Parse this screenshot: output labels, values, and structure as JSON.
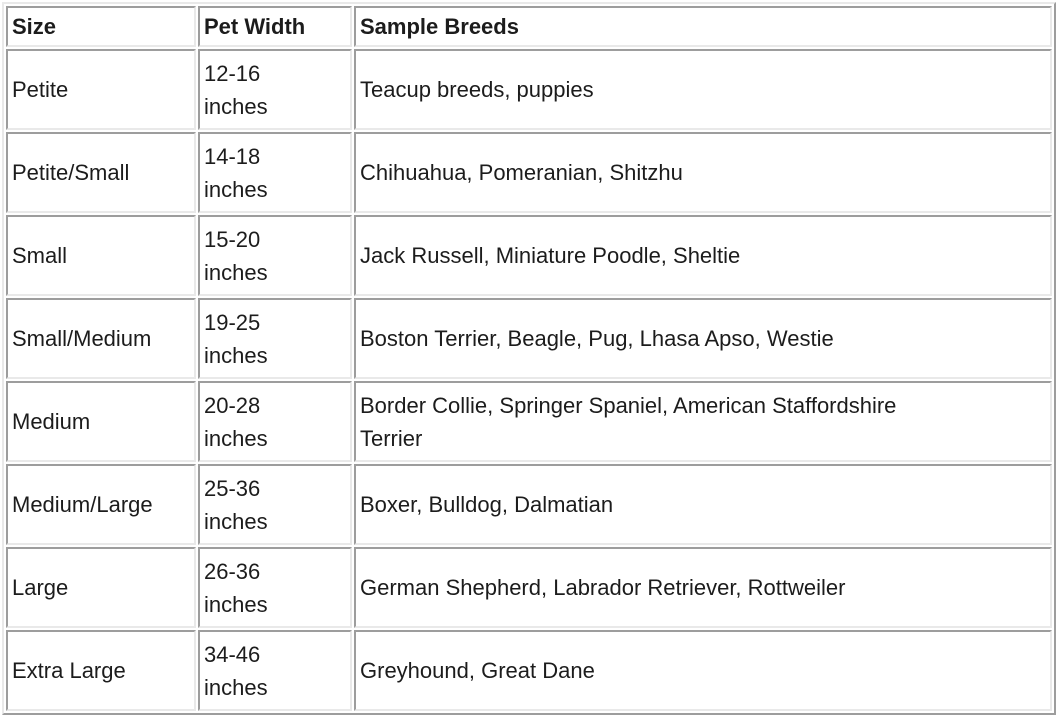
{
  "colors": {
    "border_dark": "#9d9d9d",
    "border_light": "#e9e9e9",
    "text": "#1c1c1c",
    "background": "#ffffff"
  },
  "table": {
    "columns": [
      {
        "label": "Size"
      },
      {
        "label": "Pet Width"
      },
      {
        "label": "Sample Breeds"
      }
    ],
    "rows": [
      {
        "size": "Petite",
        "width": "12-16\ninches",
        "breeds": "Teacup breeds, puppies"
      },
      {
        "size": "Petite/Small",
        "width": "14-18\ninches",
        "breeds": "Chihuahua, Pomeranian, Shitzhu"
      },
      {
        "size": "Small",
        "width": "15-20\ninches",
        "breeds": "Jack Russell, Miniature Poodle, Sheltie"
      },
      {
        "size": "Small/Medium",
        "width": "19-25\ninches",
        "breeds": "Boston Terrier, Beagle, Pug, Lhasa Apso, Westie"
      },
      {
        "size": "Medium",
        "width": "20-28\ninches",
        "breeds": "Border Collie, Springer Spaniel, American Staffordshire\nTerrier"
      },
      {
        "size": "Medium/Large",
        "width": "25-36\ninches",
        "breeds": "Boxer, Bulldog, Dalmatian"
      },
      {
        "size": "Large",
        "width": "26-36\ninches",
        "breeds": "German Shepherd, Labrador Retriever, Rottweiler"
      },
      {
        "size": "Extra Large",
        "width": "34-46\ninches",
        "breeds": "Greyhound, Great Dane"
      }
    ]
  }
}
